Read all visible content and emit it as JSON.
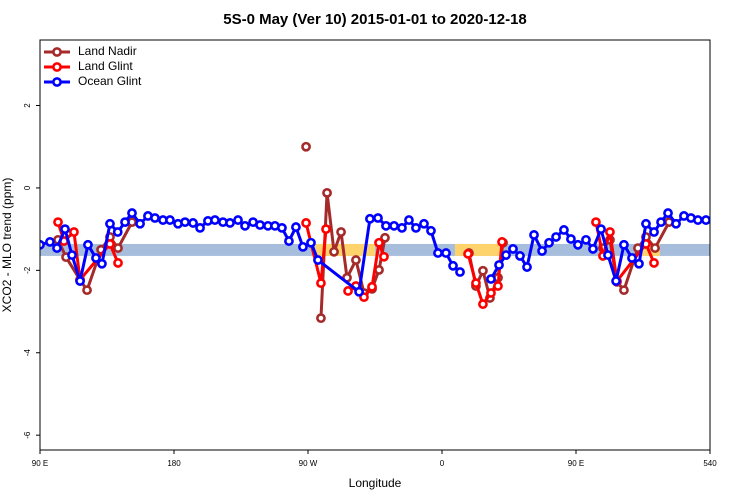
{
  "chart_data": {
    "type": "line",
    "title": "5S-0 May (Ver 10)   2015-01-01 to 2020-12-18",
    "x_label": "Longitude",
    "y_label": "XCO2 - MLO trend (ppm)",
    "xlim": [
      90,
      540
    ],
    "ylim": [
      -6.36,
      3.59
    ],
    "xticks": [
      {
        "value": 90,
        "label": "90 E"
      },
      180,
      {
        "value": 270,
        "label": "90 W"
      },
      {
        "value": 360,
        "label": "0"
      },
      {
        "value": 450,
        "label": "90 E"
      },
      540
    ],
    "yticks": [
      -6,
      -4,
      -2,
      0,
      2
    ],
    "legend": "top-left",
    "band": {
      "ylim": [
        -1.65,
        -1.36
      ],
      "color": "#a6bddb"
    },
    "highlights": {
      "color": "#ffd36b",
      "ranges": [
        [
          274.7,
          315.0
        ],
        [
          368.7,
          398.9
        ],
        [
          493.0,
          506.4
        ]
      ]
    },
    "series": [
      {
        "name": "Land Nadir",
        "color": "#a52a2a",
        "x": [
          102.1,
          107.5,
          116.9,
          121.6,
          131.0,
          137.0,
          142.4,
          151.8,
          null,
          268.7,
          null,
          278.7,
          282.8,
          287.5,
          292.2,
          296.2,
          302.2,
          307.6,
          313.0,
          317.7,
          321.7,
          null,
          378.1,
          382.8,
          387.5,
          392.2,
          397.6,
          401.0,
          null,
          468.1,
          472.8,
          477.5,
          482.2,
          491.6,
          497.0,
          503.1,
          512.5
        ],
        "values": [
          -1.26,
          -1.68,
          -2.23,
          -2.48,
          -1.5,
          -1.19,
          -1.46,
          -0.83,
          null,
          1.0,
          null,
          -3.16,
          -0.12,
          -1.55,
          -1.07,
          -2.18,
          -1.75,
          -2.55,
          -2.45,
          -1.99,
          -1.21,
          null,
          -1.58,
          -2.38,
          -2.01,
          -2.67,
          -2.18,
          -1.33,
          null,
          -1.46,
          -1.26,
          -2.28,
          -2.48,
          -1.46,
          -1.19,
          -1.46,
          -0.83
        ]
      },
      {
        "name": "Land Glint",
        "color": "#ff0000",
        "x": [
          102.1,
          106.1,
          112.8,
          116.9,
          137.0,
          142.4,
          null,
          268.7,
          278.7,
          282.1,
          null,
          296.9,
          302.2,
          307.6,
          313.0,
          317.7,
          321.0,
          null,
          377.5,
          382.8,
          387.5,
          392.9,
          397.6,
          400.3,
          null,
          463.4,
          468.1,
          472.8,
          477.5,
          497.0,
          502.4
        ],
        "values": [
          -0.83,
          -1.29,
          -1.07,
          -2.23,
          -1.36,
          -1.82,
          null,
          -0.85,
          -2.31,
          -1.0,
          null,
          -2.5,
          -2.38,
          -2.65,
          -2.4,
          -1.33,
          -1.67,
          null,
          -1.6,
          -2.31,
          -2.82,
          -2.55,
          -2.38,
          -1.31,
          null,
          -0.83,
          -1.65,
          -1.07,
          -2.26,
          -1.36,
          -1.82
        ]
      },
      {
        "name": "Ocean Glint",
        "color": "#0000ff",
        "x": [
          90,
          96.7,
          101.4,
          106.8,
          111.5,
          116.9,
          122.2,
          127.6,
          131.6,
          137.0,
          142.2,
          147.1,
          151.8,
          157.2,
          162.5,
          167.2,
          172.6,
          177.3,
          182.7,
          187.4,
          192.8,
          197.5,
          202.8,
          207.5,
          212.9,
          217.6,
          223.0,
          227.7,
          233.1,
          237.8,
          243.1,
          247.8,
          252.5,
          257.2,
          261.9,
          266.6,
          272.0,
          276.7,
          304.3,
          311.6,
          317.0,
          322.4,
          327.8,
          333.1,
          337.8,
          342.5,
          347.9,
          352.6,
          357.3,
          362.7,
          367.4,
          372.1,
          null,
          392.9,
          398.3,
          403.0,
          407.7,
          412.4,
          417.1,
          421.8,
          427.2,
          431.9,
          436.6,
          441.9,
          446.6,
          451.3,
          456.7,
          461.4,
          466.8,
          471.5,
          476.9,
          482.2,
          487.6,
          492.3,
          497.0,
          502.4,
          507.1,
          511.8,
          517.2,
          522.5,
          527.2,
          531.9,
          537.3
        ],
        "values": [
          -1.38,
          -1.31,
          -1.46,
          -1.0,
          -1.63,
          -2.26,
          -1.38,
          -1.7,
          -1.84,
          -0.87,
          -1.07,
          -0.83,
          -0.61,
          -0.87,
          -0.68,
          -0.73,
          -0.78,
          -0.78,
          -0.87,
          -0.83,
          -0.85,
          -0.97,
          -0.8,
          -0.78,
          -0.83,
          -0.85,
          -0.78,
          -0.92,
          -0.83,
          -0.9,
          -0.92,
          -0.92,
          -0.97,
          -1.29,
          -0.95,
          -1.43,
          -1.33,
          -1.75,
          -2.52,
          -0.75,
          -0.73,
          -0.92,
          -0.92,
          -0.97,
          -0.78,
          -0.97,
          -0.87,
          -1.04,
          -1.58,
          -1.58,
          -1.89,
          -2.04,
          null,
          -2.21,
          -1.87,
          -1.63,
          -1.48,
          -1.65,
          -1.92,
          -1.14,
          -1.53,
          -1.33,
          -1.19,
          -1.02,
          -1.24,
          -1.38,
          -1.26,
          -1.48,
          -1.0,
          -1.63,
          -2.26,
          -1.38,
          -1.7,
          -1.84,
          -0.87,
          -1.07,
          -0.83,
          -0.61,
          -0.87,
          -0.68,
          -0.73,
          -0.78,
          -0.78
        ]
      }
    ]
  }
}
